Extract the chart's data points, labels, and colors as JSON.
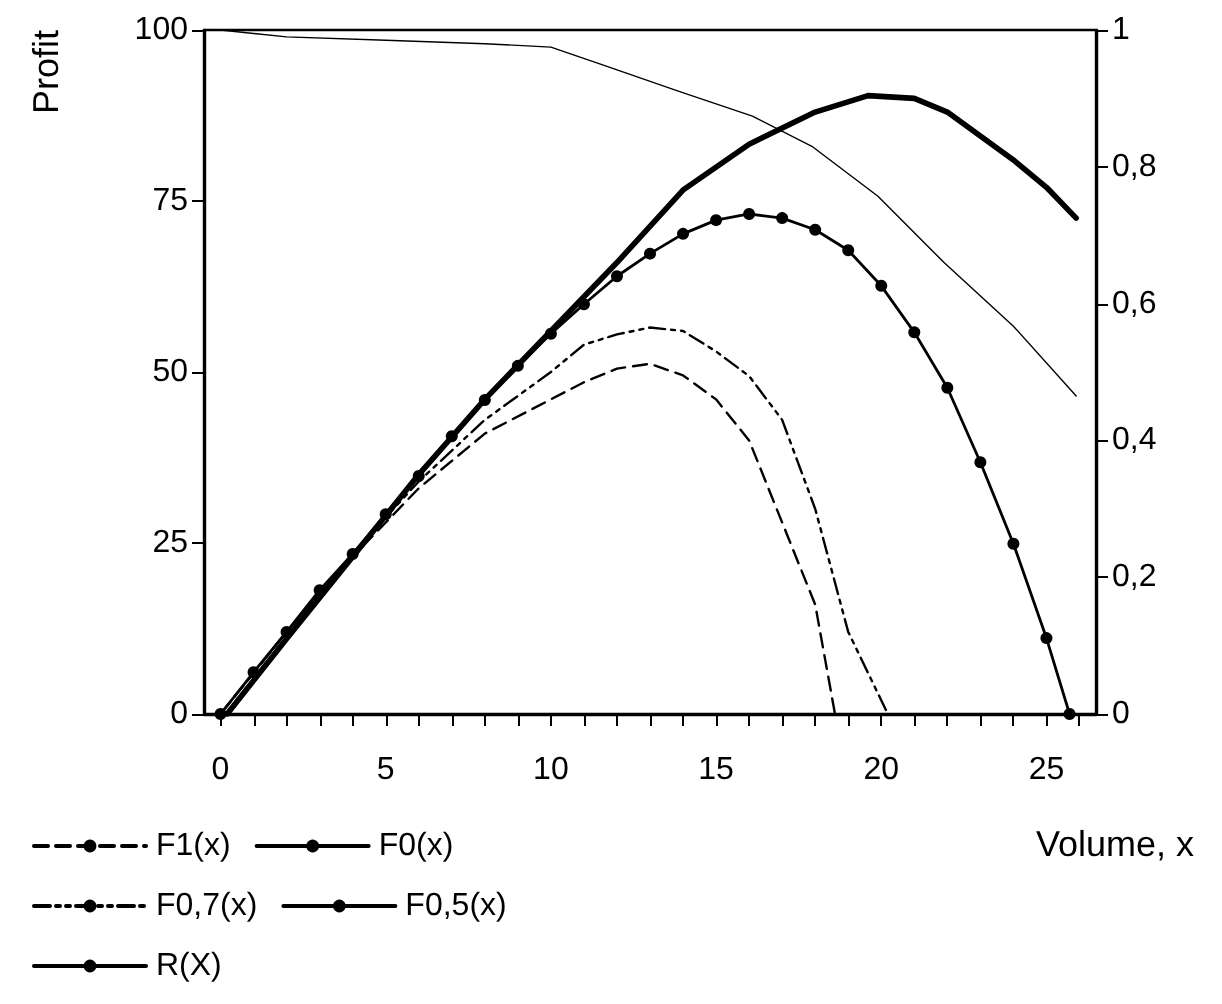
{
  "chart_data": {
    "type": "line",
    "xlabel": "Volume, x",
    "ylabel": "Profit",
    "xlim": [
      -0.5,
      26.5
    ],
    "xticks": [
      0,
      {
        "value": 1,
        "label": null
      },
      {
        "value": 2,
        "label": null
      },
      {
        "value": 3,
        "label": null
      },
      {
        "value": 4,
        "label": null
      },
      5,
      {
        "value": 6,
        "label": null
      },
      {
        "value": 7,
        "label": null
      },
      {
        "value": 8,
        "label": null
      },
      {
        "value": 9,
        "label": null
      },
      10,
      {
        "value": 11,
        "label": null
      },
      {
        "value": 12,
        "label": null
      },
      {
        "value": 13,
        "label": null
      },
      {
        "value": 14,
        "label": null
      },
      15,
      {
        "value": 16,
        "label": null
      },
      {
        "value": 17,
        "label": null
      },
      {
        "value": 18,
        "label": null
      },
      {
        "value": 19,
        "label": null
      },
      20,
      {
        "value": 21,
        "label": null
      },
      {
        "value": 22,
        "label": null
      },
      {
        "value": 23,
        "label": null
      },
      {
        "value": 24,
        "label": null
      },
      25,
      {
        "value": 26,
        "label": null
      }
    ],
    "ylim": [
      0,
      100
    ],
    "yticks": [
      0,
      25,
      50,
      75,
      100
    ],
    "y2lim": [
      0,
      1
    ],
    "y2ticks": [
      0,
      {
        "value": 0.2,
        "label": "0,2"
      },
      {
        "value": 0.4,
        "label": "0,4"
      },
      {
        "value": 0.6,
        "label": "0,6"
      },
      {
        "value": 0.8,
        "label": "0,8"
      },
      1
    ],
    "grid": false,
    "legend": "bottom left",
    "series": [
      {
        "name": "F1(x)",
        "color": "#000000",
        "line_style": "dashed",
        "marker": "none",
        "x": [
          0,
          2,
          4,
          6,
          8,
          10,
          11,
          12,
          13,
          14,
          15,
          16,
          17,
          18,
          18.6
        ],
        "values": [
          0,
          12,
          23,
          33,
          41,
          46,
          48.5,
          50.5,
          51.2,
          49.5,
          46,
          40,
          28,
          16,
          0
        ]
      },
      {
        "name": "F0(x)",
        "color": "#000000",
        "line_style": "solid",
        "marker": "none",
        "x": [
          0.2,
          2,
          4,
          6,
          8,
          10,
          12,
          14,
          16,
          18,
          19.6,
          21,
          22,
          24,
          25,
          25.9
        ],
        "values": [
          0,
          11,
          23,
          35,
          46,
          56,
          66,
          76.6,
          83.3,
          88,
          90.4,
          90,
          88,
          81,
          77,
          72.5
        ]
      },
      {
        "name": "F0,7(x)",
        "color": "#000000",
        "line_style": "dashdot",
        "marker": "none",
        "x": [
          0,
          2,
          4,
          6,
          8,
          10,
          11,
          12,
          13,
          14,
          15,
          16,
          17,
          18,
          19,
          20.2
        ],
        "values": [
          0,
          12,
          23.5,
          34,
          43,
          50,
          54,
          55.5,
          56.5,
          56,
          53,
          49.4,
          43,
          30,
          12,
          0
        ]
      },
      {
        "name": "F0,5(x)",
        "color": "#000000",
        "line_style": "solid",
        "marker": "circle",
        "x": [
          0,
          1,
          2,
          3,
          4,
          5,
          6,
          7,
          8,
          9,
          10,
          11,
          12,
          13,
          14,
          15,
          16,
          17,
          18,
          19,
          20,
          21,
          22,
          23,
          24,
          25,
          25.7
        ],
        "values": [
          0,
          6.1,
          12,
          18.1,
          23.4,
          29.2,
          34.8,
          40.6,
          45.9,
          50.9,
          55.6,
          59.9,
          64,
          67.3,
          70.2,
          72.2,
          73.1,
          72.5,
          70.8,
          67.8,
          62.6,
          55.8,
          47.7,
          36.8,
          24.9,
          11.1,
          0
        ]
      },
      {
        "name": "R(X)",
        "color": "#000000",
        "line_style": "solid",
        "marker": "none",
        "axis": "y2",
        "x": [
          0,
          2,
          5,
          8,
          10,
          11.5,
          13.9,
          16.1,
          17.9,
          19.9,
          21.9,
          24,
          25.9
        ],
        "values": [
          1,
          0.99,
          0.985,
          0.98,
          0.975,
          0.95,
          0.91,
          0.874,
          0.83,
          0.757,
          0.66,
          0.567,
          0.465
        ]
      }
    ]
  }
}
